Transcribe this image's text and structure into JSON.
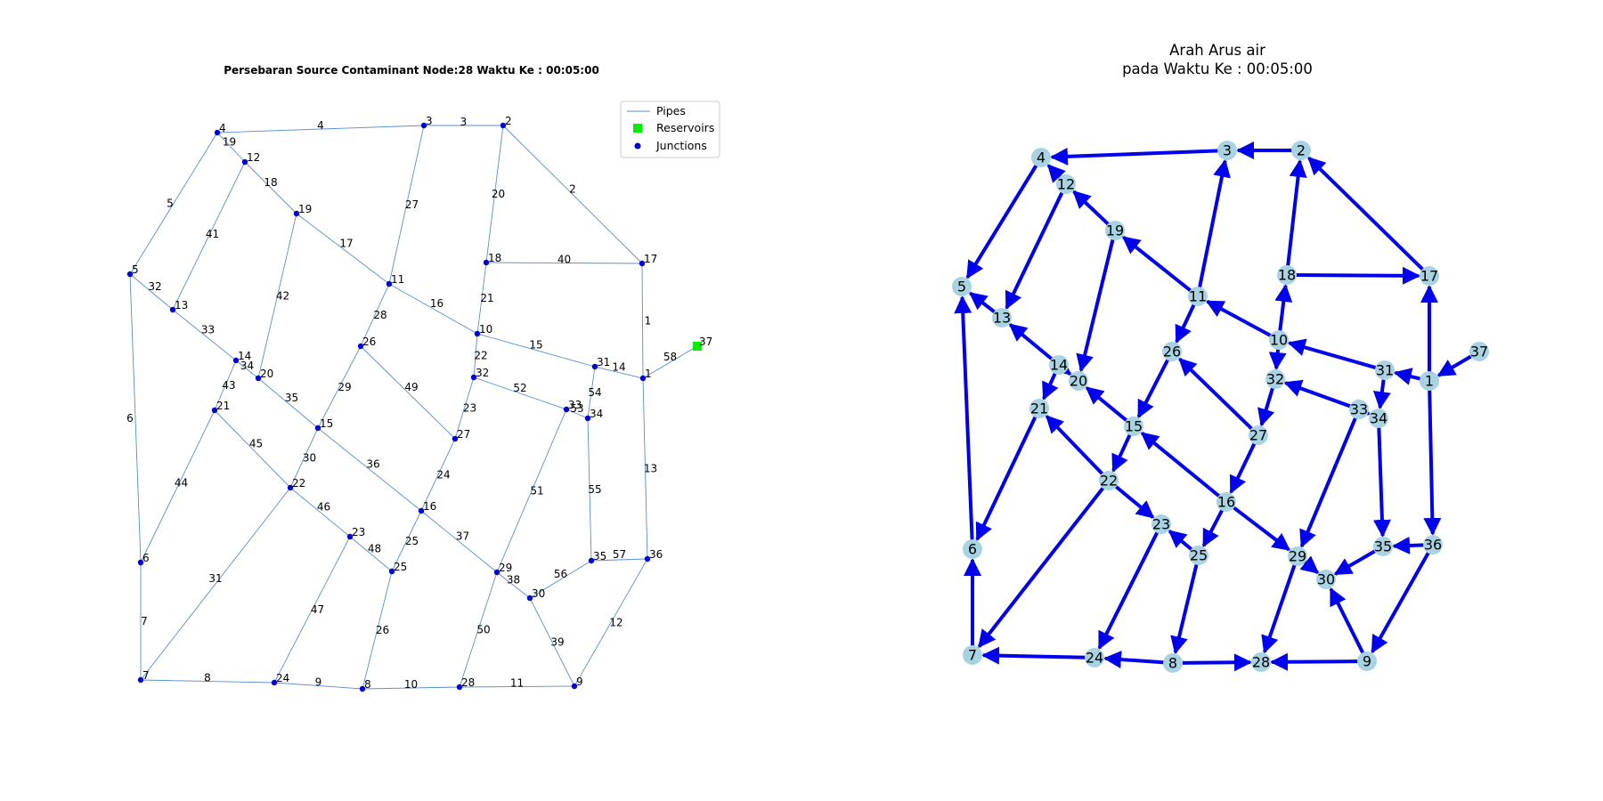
{
  "left_panel": {
    "title": "Persebaran Source Contaminant Node:28 Waktu Ke : 00:05:00",
    "legend": {
      "pipes": "Pipes",
      "reservoirs": "Reservoirs",
      "junctions": "Junctions"
    },
    "colors": {
      "pipe": "#5b8fc9",
      "junction": "#0000dd",
      "reservoir": "#00ee00"
    }
  },
  "right_panel": {
    "title_line1": "Arah Arus air",
    "title_line2": "pada Waktu Ke : 00:05:00",
    "colors": {
      "arrow": "#0000ee",
      "node": "#a8d3e3"
    }
  },
  "network": {
    "nodes": [
      {
        "id": 1,
        "label": "1"
      },
      {
        "id": 2,
        "label": "2"
      },
      {
        "id": 3,
        "label": "3"
      },
      {
        "id": 4,
        "label": "4"
      },
      {
        "id": 5,
        "label": "5"
      },
      {
        "id": 6,
        "label": "6"
      },
      {
        "id": 7,
        "label": "7"
      },
      {
        "id": 8,
        "label": "8"
      },
      {
        "id": 9,
        "label": "9"
      },
      {
        "id": 10,
        "label": "10"
      },
      {
        "id": 11,
        "label": "11"
      },
      {
        "id": 12,
        "label": "12"
      },
      {
        "id": 13,
        "label": "13"
      },
      {
        "id": 14,
        "label": "14"
      },
      {
        "id": 15,
        "label": "15"
      },
      {
        "id": 16,
        "label": "16"
      },
      {
        "id": 17,
        "label": "17"
      },
      {
        "id": 18,
        "label": "18"
      },
      {
        "id": 19,
        "label": "19"
      },
      {
        "id": 20,
        "label": "20"
      },
      {
        "id": 21,
        "label": "21"
      },
      {
        "id": 22,
        "label": "22"
      },
      {
        "id": 23,
        "label": "23"
      },
      {
        "id": 24,
        "label": "24"
      },
      {
        "id": 25,
        "label": "25"
      },
      {
        "id": 26,
        "label": "26"
      },
      {
        "id": 27,
        "label": "27"
      },
      {
        "id": 28,
        "label": "28"
      },
      {
        "id": 29,
        "label": "29"
      },
      {
        "id": 30,
        "label": "30"
      },
      {
        "id": 31,
        "label": "31"
      },
      {
        "id": 32,
        "label": "32"
      },
      {
        "id": 33,
        "label": "33"
      },
      {
        "id": 34,
        "label": "34"
      },
      {
        "id": 35,
        "label": "35"
      },
      {
        "id": 36,
        "label": "36"
      },
      {
        "id": 37,
        "label": "37",
        "type": "reservoir"
      }
    ],
    "pipes": [
      {
        "label": "1",
        "from": 1,
        "to": 17
      },
      {
        "label": "2",
        "from": 17,
        "to": 2
      },
      {
        "label": "3",
        "from": 2,
        "to": 3
      },
      {
        "label": "4",
        "from": 3,
        "to": 4
      },
      {
        "label": "5",
        "from": 4,
        "to": 5
      },
      {
        "label": "6",
        "from": 6,
        "to": 5
      },
      {
        "label": "7",
        "from": 7,
        "to": 6
      },
      {
        "label": "8",
        "from": 24,
        "to": 7
      },
      {
        "label": "9",
        "from": 8,
        "to": 24
      },
      {
        "label": "10",
        "from": 8,
        "to": 28
      },
      {
        "label": "11",
        "from": 9,
        "to": 28
      },
      {
        "label": "12",
        "from": 36,
        "to": 9
      },
      {
        "label": "13",
        "from": 1,
        "to": 36
      },
      {
        "label": "14",
        "from": 1,
        "to": 31
      },
      {
        "label": "15",
        "from": 31,
        "to": 10
      },
      {
        "label": "16",
        "from": 10,
        "to": 11
      },
      {
        "label": "17",
        "from": 11,
        "to": 19
      },
      {
        "label": "18",
        "from": 19,
        "to": 12
      },
      {
        "label": "19",
        "from": 12,
        "to": 4
      },
      {
        "label": "20",
        "from": 18,
        "to": 2
      },
      {
        "label": "21",
        "from": 10,
        "to": 18
      },
      {
        "label": "22",
        "from": 10,
        "to": 32
      },
      {
        "label": "23",
        "from": 32,
        "to": 27
      },
      {
        "label": "24",
        "from": 27,
        "to": 16
      },
      {
        "label": "25",
        "from": 16,
        "to": 25
      },
      {
        "label": "26",
        "from": 25,
        "to": 8
      },
      {
        "label": "27",
        "from": 11,
        "to": 3
      },
      {
        "label": "28",
        "from": 11,
        "to": 26
      },
      {
        "label": "29",
        "from": 26,
        "to": 15
      },
      {
        "label": "30",
        "from": 15,
        "to": 22
      },
      {
        "label": "31",
        "from": 22,
        "to": 7
      },
      {
        "label": "32",
        "from": 13,
        "to": 5
      },
      {
        "label": "33",
        "from": 14,
        "to": 13
      },
      {
        "label": "34",
        "from": 14,
        "to": 20
      },
      {
        "label": "35",
        "from": 15,
        "to": 20
      },
      {
        "label": "36",
        "from": 16,
        "to": 15
      },
      {
        "label": "37",
        "from": 16,
        "to": 29
      },
      {
        "label": "38",
        "from": 29,
        "to": 30
      },
      {
        "label": "39",
        "from": 9,
        "to": 30
      },
      {
        "label": "40",
        "from": 18,
        "to": 17
      },
      {
        "label": "41",
        "from": 12,
        "to": 13
      },
      {
        "label": "42",
        "from": 19,
        "to": 20
      },
      {
        "label": "43",
        "from": 14,
        "to": 21
      },
      {
        "label": "44",
        "from": 21,
        "to": 6
      },
      {
        "label": "45",
        "from": 22,
        "to": 21
      },
      {
        "label": "46",
        "from": 22,
        "to": 23
      },
      {
        "label": "47",
        "from": 23,
        "to": 24
      },
      {
        "label": "48",
        "from": 25,
        "to": 23
      },
      {
        "label": "49",
        "from": 27,
        "to": 26
      },
      {
        "label": "50",
        "from": 29,
        "to": 28
      },
      {
        "label": "51",
        "from": 33,
        "to": 29
      },
      {
        "label": "52",
        "from": 33,
        "to": 32
      },
      {
        "label": "53",
        "from": 33,
        "to": 34
      },
      {
        "label": "54",
        "from": 31,
        "to": 34
      },
      {
        "label": "55",
        "from": 34,
        "to": 35
      },
      {
        "label": "56",
        "from": 35,
        "to": 30
      },
      {
        "label": "57",
        "from": 36,
        "to": 35
      },
      {
        "label": "58",
        "from": 37,
        "to": 1
      }
    ]
  }
}
